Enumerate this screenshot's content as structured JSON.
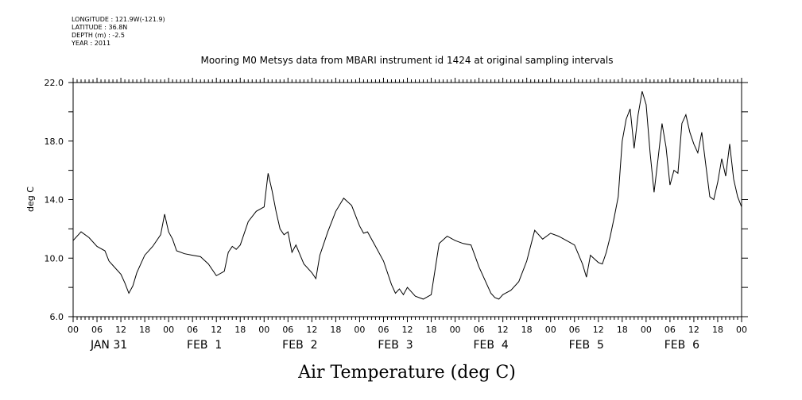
{
  "meta": {
    "longitude": "LONGITUDE : 121.9W(-121.9)",
    "latitude": "LATITUDE : 36.8N",
    "depth": "DEPTH (m) : -2.5",
    "year": "YEAR : 2011"
  },
  "chart_data": {
    "type": "line",
    "title": "Mooring M0 Metsys data from MBARI instrument id 1424 at original sampling intervals",
    "xlabel": "Air Temperature (deg C)",
    "ylabel": "deg C",
    "ylim": [
      6.0,
      22.0
    ],
    "yticks": [
      "6.0",
      "10.0",
      "14.0",
      "18.0",
      "22.0"
    ],
    "xlim_hours": [
      0,
      168
    ],
    "hour_tick_labels": [
      "00",
      "06",
      "12",
      "18"
    ],
    "day_labels": [
      "JAN 31",
      "FEB  1",
      "FEB  2",
      "FEB  3",
      "FEB  4",
      "FEB  5",
      "FEB  6"
    ],
    "series": [
      {
        "x_hours": [
          0,
          2,
          4,
          6,
          8,
          9,
          10,
          12,
          13,
          14,
          15,
          16,
          17,
          18,
          20,
          22,
          23,
          24,
          25,
          26,
          28,
          30,
          32,
          34,
          36,
          38,
          39,
          40,
          41,
          42,
          44,
          46,
          48,
          49,
          50,
          51,
          52,
          53,
          54,
          55,
          56,
          58,
          60,
          61,
          62,
          64,
          66,
          68,
          70,
          72,
          73,
          74,
          76,
          78,
          80,
          81,
          82,
          83,
          84,
          86,
          88,
          90,
          92,
          94,
          96,
          98,
          100,
          102,
          104,
          105,
          106,
          107,
          108,
          110,
          112,
          114,
          116,
          118,
          120,
          122,
          124,
          126,
          128,
          129,
          130,
          132,
          133,
          134,
          135,
          136,
          137,
          138,
          139,
          140,
          141,
          142,
          143,
          144,
          145,
          146,
          147,
          148,
          149,
          150,
          151,
          152,
          153,
          154,
          155,
          156,
          157,
          158,
          159,
          160,
          161,
          162,
          163,
          164,
          165,
          166,
          167,
          168
        ],
        "y": [
          11.2,
          11.8,
          11.4,
          10.8,
          10.5,
          9.8,
          9.5,
          8.9,
          8.3,
          7.6,
          8.1,
          9.0,
          9.6,
          10.2,
          10.8,
          11.6,
          13.0,
          11.8,
          11.3,
          10.5,
          10.3,
          10.2,
          10.1,
          9.6,
          8.8,
          9.1,
          10.4,
          10.8,
          10.6,
          10.9,
          12.5,
          13.2,
          13.5,
          15.8,
          14.6,
          13.2,
          12.0,
          11.6,
          11.8,
          10.4,
          10.9,
          9.6,
          9.0,
          8.6,
          10.2,
          11.8,
          13.2,
          14.1,
          13.6,
          12.2,
          11.7,
          11.8,
          10.8,
          9.8,
          8.2,
          7.6,
          7.9,
          7.5,
          8.0,
          7.4,
          7.2,
          7.5,
          11.0,
          11.5,
          11.2,
          11.0,
          10.9,
          9.4,
          8.2,
          7.6,
          7.3,
          7.2,
          7.5,
          7.8,
          8.4,
          9.8,
          11.9,
          11.3,
          11.7,
          11.5,
          11.2,
          10.9,
          9.6,
          8.7,
          10.2,
          9.7,
          9.6,
          10.4,
          11.5,
          12.8,
          14.2,
          18.0,
          19.5,
          20.2,
          17.5,
          19.8,
          21.4,
          20.5,
          17.2,
          14.5,
          16.8,
          19.2,
          17.6,
          15.0,
          16.0,
          15.8,
          19.2,
          19.8,
          18.6,
          17.8,
          17.2,
          18.6,
          16.4,
          14.2,
          14.0,
          15.2,
          16.8,
          15.6,
          17.8,
          15.4,
          14.2,
          13.5
        ]
      }
    ]
  }
}
